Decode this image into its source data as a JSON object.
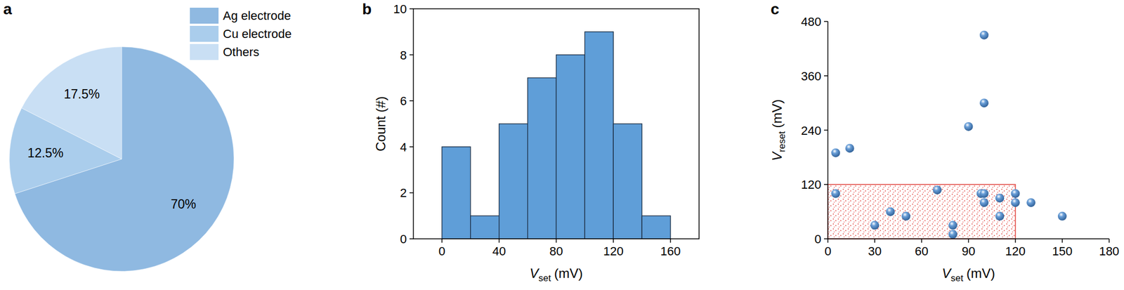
{
  "chart_data": [
    {
      "type": "pie",
      "panel_label": "a",
      "categories": [
        "Ag electrode",
        "Cu electrode",
        "Others"
      ],
      "values": [
        70,
        12.5,
        17.5
      ],
      "value_labels": [
        "70%",
        "12.5%",
        "17.5%"
      ],
      "colors": [
        "#8fb9e1",
        "#aacdec",
        "#c9dff4"
      ],
      "data_labels": true,
      "legend": "upper right"
    },
    {
      "type": "histogram",
      "panel_label": "b",
      "bins": [
        0,
        20,
        40,
        60,
        80,
        100,
        120,
        140,
        160
      ],
      "values": [
        4,
        1,
        5,
        7,
        8,
        9,
        5,
        1
      ],
      "color": "#5f9ed8",
      "xlim": [
        -20,
        180
      ],
      "xticks": [
        0,
        40,
        80,
        120,
        160
      ],
      "ylim": [
        0,
        10
      ],
      "yticks": [
        0,
        2,
        4,
        6,
        8,
        10
      ],
      "xlabel": {
        "symbol": "V",
        "subscript": "set",
        "unit": "(mV)"
      },
      "ylabel": "Count (#)"
    },
    {
      "type": "scatter",
      "panel_label": "c",
      "x": [
        5,
        14,
        5,
        30,
        40,
        50,
        70,
        80,
        80,
        90,
        100,
        100,
        98,
        100,
        100,
        110,
        110,
        120,
        120,
        130,
        150
      ],
      "y": [
        190,
        200,
        100,
        30,
        60,
        50,
        108,
        30,
        10,
        248,
        450,
        300,
        100,
        100,
        80,
        90,
        50,
        100,
        80,
        80,
        50
      ],
      "color": "#6a9fd8",
      "marker": "sphere",
      "xlim": [
        0,
        180
      ],
      "xticks": [
        0,
        30,
        60,
        90,
        120,
        150,
        180
      ],
      "ylim": [
        0,
        480
      ],
      "yticks": [
        0,
        120,
        240,
        360,
        480
      ],
      "xlabel": {
        "symbol": "V",
        "subscript": "set",
        "unit": "(mV)"
      },
      "ylabel": {
        "symbol": "V",
        "subscript": "reset",
        "unit": "(mV)"
      },
      "region": {
        "xlim": [
          0,
          120
        ],
        "ylim": [
          0,
          120
        ],
        "color": "#e0403a"
      }
    }
  ]
}
